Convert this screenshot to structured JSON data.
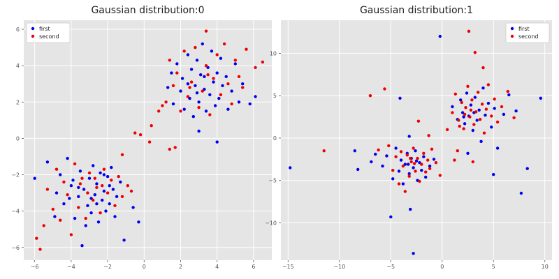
{
  "chart_data": [
    {
      "type": "scatter",
      "title": "Gaussian distribution:0",
      "xlabel": "",
      "ylabel": "",
      "xlim": [
        -6.6,
        7.0
      ],
      "ylim": [
        -6.7,
        6.5
      ],
      "xticks": [
        -6,
        -4,
        -2,
        0,
        2,
        4,
        6
      ],
      "yticks": [
        -6,
        -4,
        -2,
        0,
        2,
        4,
        6
      ],
      "grid": true,
      "legend_position": "top-left",
      "background": "#e5e5e5",
      "series": [
        {
          "name": "first",
          "color": "#0000ee",
          "points": [
            [
              -6.0,
              -2.2
            ],
            [
              -5.3,
              -1.3
            ],
            [
              -4.9,
              -4.3
            ],
            [
              -4.8,
              -3.0
            ],
            [
              -4.6,
              -2.0
            ],
            [
              -4.4,
              -3.6
            ],
            [
              -4.2,
              -1.1
            ],
            [
              -4.0,
              -2.6
            ],
            [
              -3.8,
              -4.4
            ],
            [
              -3.6,
              -3.2
            ],
            [
              -3.5,
              -1.8
            ],
            [
              -3.4,
              -5.9
            ],
            [
              -3.3,
              -2.8
            ],
            [
              -3.1,
              -3.7
            ],
            [
              -3.0,
              -2.2
            ],
            [
              -2.9,
              -4.1
            ],
            [
              -2.8,
              -1.5
            ],
            [
              -2.7,
              -3.1
            ],
            [
              -2.6,
              -2.5
            ],
            [
              -2.5,
              -4.6
            ],
            [
              -2.4,
              -1.9
            ],
            [
              -2.3,
              -3.4
            ],
            [
              -2.2,
              -2.9
            ],
            [
              -2.1,
              -4.0
            ],
            [
              -2.0,
              -2.1
            ],
            [
              -1.9,
              -3.6
            ],
            [
              -1.8,
              -1.6
            ],
            [
              -1.7,
              -2.8
            ],
            [
              -1.6,
              -4.3
            ],
            [
              -1.5,
              -3.2
            ],
            [
              -1.3,
              -2.4
            ],
            [
              -1.1,
              -5.6
            ],
            [
              -3.9,
              -2.3
            ],
            [
              -3.2,
              -4.8
            ],
            [
              -2.6,
              -3.6
            ],
            [
              -4.1,
              -3.3
            ],
            [
              -2.2,
              -2.0
            ],
            [
              -3.6,
              -2.7
            ],
            [
              -2.9,
              -3.3
            ],
            [
              -1.9,
              -2.6
            ],
            [
              -0.3,
              -4.6
            ],
            [
              -0.6,
              -3.8
            ],
            [
              1.3,
              2.8
            ],
            [
              1.5,
              3.6
            ],
            [
              1.6,
              1.9
            ],
            [
              1.8,
              4.1
            ],
            [
              2.0,
              2.6
            ],
            [
              2.1,
              3.3
            ],
            [
              2.2,
              1.6
            ],
            [
              2.4,
              4.6
            ],
            [
              2.5,
              2.2
            ],
            [
              2.6,
              3.8
            ],
            [
              2.7,
              1.2
            ],
            [
              2.8,
              2.9
            ],
            [
              2.9,
              4.3
            ],
            [
              3.0,
              2.0
            ],
            [
              3.1,
              3.5
            ],
            [
              3.2,
              5.2
            ],
            [
              3.3,
              2.7
            ],
            [
              3.4,
              1.5
            ],
            [
              3.5,
              3.9
            ],
            [
              3.6,
              2.4
            ],
            [
              3.7,
              4.8
            ],
            [
              3.8,
              3.1
            ],
            [
              3.9,
              1.8
            ],
            [
              4.0,
              3.6
            ],
            [
              4.1,
              2.2
            ],
            [
              4.2,
              4.4
            ],
            [
              4.3,
              2.9
            ],
            [
              4.5,
              3.4
            ],
            [
              4.6,
              1.6
            ],
            [
              4.8,
              2.6
            ],
            [
              5.0,
              4.1
            ],
            [
              5.2,
              2.0
            ],
            [
              5.4,
              3.0
            ],
            [
              5.8,
              1.9
            ],
            [
              6.1,
              2.3
            ],
            [
              3.0,
              0.4
            ],
            [
              4.0,
              -0.2
            ],
            [
              2.4,
              3.0
            ],
            [
              3.3,
              3.4
            ],
            [
              2.9,
              2.5
            ]
          ]
        },
        {
          "name": "second",
          "color": "#ee0000",
          "points": [
            [
              -5.9,
              -5.5
            ],
            [
              -5.7,
              -6.1
            ],
            [
              -5.5,
              -4.8
            ],
            [
              -5.3,
              -2.8
            ],
            [
              -5.0,
              -3.9
            ],
            [
              -4.8,
              -1.7
            ],
            [
              -4.6,
              -4.5
            ],
            [
              -4.4,
              -2.4
            ],
            [
              -4.2,
              -3.1
            ],
            [
              -4.0,
              -5.3
            ],
            [
              -3.8,
              -1.4
            ],
            [
              -3.6,
              -3.8
            ],
            [
              -3.4,
              -2.2
            ],
            [
              -3.2,
              -4.4
            ],
            [
              -3.0,
              -1.9
            ],
            [
              -2.8,
              -3.4
            ],
            [
              -2.6,
              -2.7
            ],
            [
              -2.4,
              -4.1
            ],
            [
              -2.2,
              -1.7
            ],
            [
              -2.0,
              -3.0
            ],
            [
              -1.8,
              -2.3
            ],
            [
              -1.6,
              -3.7
            ],
            [
              -1.4,
              -2.1
            ],
            [
              -1.2,
              -3.2
            ],
            [
              -0.9,
              -2.6
            ],
            [
              -0.7,
              -2.9
            ],
            [
              -3.5,
              -2.5
            ],
            [
              -2.7,
              -2.2
            ],
            [
              -3.1,
              -3.0
            ],
            [
              -2.3,
              -2.6
            ],
            [
              -1.2,
              -0.9
            ],
            [
              -0.5,
              0.3
            ],
            [
              0.3,
              -0.2
            ],
            [
              0.4,
              0.7
            ],
            [
              1.0,
              1.8
            ],
            [
              0.8,
              1.5
            ],
            [
              -0.2,
              0.2
            ],
            [
              1.2,
              2.0
            ],
            [
              1.4,
              4.3
            ],
            [
              1.6,
              2.9
            ],
            [
              1.8,
              3.6
            ],
            [
              2.0,
              1.5
            ],
            [
              2.2,
              4.8
            ],
            [
              2.4,
              2.3
            ],
            [
              2.6,
              3.1
            ],
            [
              2.8,
              5.0
            ],
            [
              3.0,
              1.7
            ],
            [
              3.2,
              2.6
            ],
            [
              3.4,
              4.0
            ],
            [
              3.6,
              1.3
            ],
            [
              3.8,
              3.3
            ],
            [
              4.0,
              4.6
            ],
            [
              4.2,
              2.4
            ],
            [
              4.4,
              5.2
            ],
            [
              4.6,
              3.0
            ],
            [
              4.8,
              1.9
            ],
            [
              5.0,
              4.3
            ],
            [
              5.2,
              3.4
            ],
            [
              5.4,
              2.8
            ],
            [
              5.6,
              4.9
            ],
            [
              6.1,
              3.9
            ],
            [
              6.5,
              4.2
            ],
            [
              3.4,
              5.9
            ],
            [
              1.4,
              -0.6
            ],
            [
              1.7,
              -0.5
            ],
            [
              2.5,
              2.8
            ],
            [
              3.5,
              3.5
            ]
          ]
        }
      ]
    },
    {
      "type": "scatter",
      "title": "Gaussian distribution:1",
      "xlabel": "",
      "ylabel": "",
      "xlim": [
        -15.7,
        10.7
      ],
      "ylim": [
        -14.4,
        13.9
      ],
      "xticks": [
        -15,
        -10,
        -5,
        0,
        5,
        10
      ],
      "yticks": [
        -10,
        -5,
        0,
        5,
        10
      ],
      "grid": true,
      "legend_position": "top-right",
      "background": "#e5e5e5",
      "series": [
        {
          "name": "first",
          "color": "#0000ee",
          "points": [
            [
              -14.8,
              -3.5
            ],
            [
              -8.5,
              -1.5
            ],
            [
              -8.2,
              -3.7
            ],
            [
              -6.9,
              -2.8
            ],
            [
              -6.5,
              -1.9
            ],
            [
              -5.8,
              -3.3
            ],
            [
              -5.4,
              -2.1
            ],
            [
              -5.0,
              -9.3
            ],
            [
              -4.8,
              -4.8
            ],
            [
              -4.5,
              -1.2
            ],
            [
              -4.2,
              -3.9
            ],
            [
              -4.0,
              -2.6
            ],
            [
              -3.8,
              -5.4
            ],
            [
              -3.6,
              -3.1
            ],
            [
              -3.4,
              -1.8
            ],
            [
              -3.2,
              -4.2
            ],
            [
              -3.0,
              -2.4
            ],
            [
              -2.8,
              -3.5
            ],
            [
              -2.6,
              -1.5
            ],
            [
              -2.4,
              -5.0
            ],
            [
              -2.2,
              -2.9
            ],
            [
              -2.0,
              -3.8
            ],
            [
              -1.8,
              -2.2
            ],
            [
              -1.6,
              -4.6
            ],
            [
              -1.2,
              -3.3
            ],
            [
              -0.8,
              -2.5
            ],
            [
              -3.1,
              -8.4
            ],
            [
              -2.8,
              -13.6
            ],
            [
              -4.1,
              4.7
            ],
            [
              -3.2,
              0.2
            ],
            [
              -0.2,
              12.0
            ],
            [
              -3.3,
              -3.1
            ],
            [
              -2.5,
              -2.7
            ],
            [
              1.0,
              3.7
            ],
            [
              1.5,
              2.2
            ],
            [
              1.8,
              4.5
            ],
            [
              2.0,
              3.0
            ],
            [
              2.2,
              1.7
            ],
            [
              2.4,
              5.3
            ],
            [
              2.6,
              2.6
            ],
            [
              2.8,
              3.9
            ],
            [
              3.0,
              0.9
            ],
            [
              3.2,
              4.8
            ],
            [
              3.4,
              2.1
            ],
            [
              3.6,
              3.3
            ],
            [
              3.8,
              -0.4
            ],
            [
              4.0,
              5.9
            ],
            [
              4.2,
              2.7
            ],
            [
              4.5,
              4.1
            ],
            [
              4.8,
              1.3
            ],
            [
              5.1,
              3.5
            ],
            [
              5.4,
              -1.2
            ],
            [
              6.0,
              2.8
            ],
            [
              6.5,
              5.1
            ],
            [
              7.2,
              3.2
            ],
            [
              7.7,
              -6.5
            ],
            [
              9.6,
              4.7
            ],
            [
              8.3,
              -3.6
            ],
            [
              5.0,
              -4.3
            ],
            [
              2.5,
              -1.8
            ],
            [
              3.1,
              3.0
            ],
            [
              2.1,
              2.5
            ]
          ]
        },
        {
          "name": "second",
          "color": "#ee0000",
          "points": [
            [
              -11.5,
              -1.5
            ],
            [
              -7.0,
              5.0
            ],
            [
              -6.2,
              -1.4
            ],
            [
              -5.6,
              5.8
            ],
            [
              -5.2,
              -0.9
            ],
            [
              -4.8,
              -3.8
            ],
            [
              -4.5,
              -2.2
            ],
            [
              -4.2,
              -5.4
            ],
            [
              -4.0,
              -1.6
            ],
            [
              -3.8,
              -3.3
            ],
            [
              -3.6,
              -6.3
            ],
            [
              -3.4,
              -2.0
            ],
            [
              -3.2,
              -4.5
            ],
            [
              -3.0,
              -2.8
            ],
            [
              -2.8,
              -1.2
            ],
            [
              -2.6,
              -3.9
            ],
            [
              -2.4,
              -2.4
            ],
            [
              -2.2,
              -5.1
            ],
            [
              -2.0,
              -3.1
            ],
            [
              -1.8,
              -1.8
            ],
            [
              -1.6,
              -4.0
            ],
            [
              -1.4,
              -2.6
            ],
            [
              -1.2,
              -3.6
            ],
            [
              -1.0,
              -1.3
            ],
            [
              -0.6,
              -2.9
            ],
            [
              -0.2,
              -4.4
            ],
            [
              -2.3,
              2.0
            ],
            [
              -1.3,
              0.3
            ],
            [
              -2.7,
              -3.0
            ],
            [
              -3.1,
              -2.4
            ],
            [
              0.5,
              1.0
            ],
            [
              1.2,
              -2.6
            ],
            [
              1.7,
              1.4
            ],
            [
              1.0,
              3.0
            ],
            [
              1.3,
              5.2
            ],
            [
              1.6,
              2.1
            ],
            [
              1.9,
              4.2
            ],
            [
              2.1,
              1.1
            ],
            [
              2.3,
              3.6
            ],
            [
              2.5,
              6.1
            ],
            [
              2.7,
              2.5
            ],
            [
              2.9,
              4.5
            ],
            [
              3.1,
              1.6
            ],
            [
              3.3,
              3.1
            ],
            [
              3.5,
              5.4
            ],
            [
              3.7,
              2.2
            ],
            [
              3.9,
              4.0
            ],
            [
              4.1,
              0.6
            ],
            [
              4.3,
              3.4
            ],
            [
              4.5,
              6.3
            ],
            [
              4.8,
              2.6
            ],
            [
              5.1,
              4.6
            ],
            [
              5.4,
              1.9
            ],
            [
              5.8,
              3.7
            ],
            [
              6.4,
              5.5
            ],
            [
              7.0,
              2.4
            ],
            [
              2.6,
              12.6
            ],
            [
              3.2,
              10.1
            ],
            [
              4.0,
              8.3
            ],
            [
              1.5,
              -1.5
            ],
            [
              3.0,
              -2.8
            ],
            [
              2.8,
              3.3
            ],
            [
              2.2,
              2.8
            ]
          ]
        }
      ]
    }
  ]
}
